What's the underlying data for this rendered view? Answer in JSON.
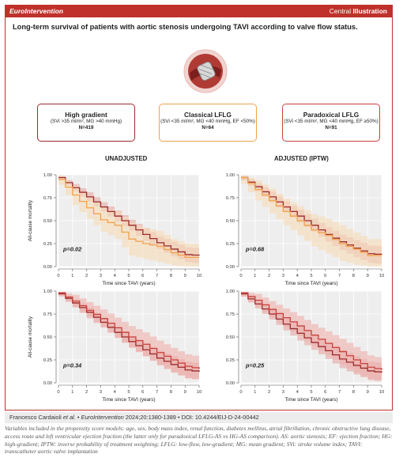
{
  "header": {
    "brand": "EuroIntervention",
    "illustration_prefix": "Central",
    "illustration_bold": "Illustration"
  },
  "headline": "Long-term survival of patients with aortic stenosis undergoing TAVI according to valve flow status.",
  "valve_icon": "tavi-valve-illustration",
  "colors": {
    "accent": "#c0312b",
    "high_gradient": "#9c2a2b",
    "classical": "#f2a24a",
    "paradoxical": "#c9413c",
    "ci_high": "#e6a9a5",
    "ci_classical": "#f7dcb8",
    "ci_paradoxical": "#efb0ab",
    "plot_bg": "#eeeeee",
    "reference_bg": "#ececec"
  },
  "groups": [
    {
      "name": "High gradient",
      "criteria": "(SVi >35 ml/m², MG >40 mmHg)",
      "n": "N=419"
    },
    {
      "name": "Classical LFLG",
      "criteria": "(SVi <35 ml/m², MG <40 mmHg, EF <50%)",
      "n": "N=64"
    },
    {
      "name": "Paradoxical LFLG",
      "criteria": "(SVi <35 ml/m², MG <40 mmHg, EF ≥50%)",
      "n": "N=91"
    }
  ],
  "column_titles": {
    "left": "UNADJUSTED",
    "right": "ADJUSTED (IPTW)"
  },
  "chart_data": [
    {
      "type": "line",
      "column": "UNADJUSTED",
      "comparison": "High gradient vs Classical LFLG",
      "ylabel": "All-cause mortality",
      "xlabel": "Time since TAVI (years)",
      "xlim": [
        0,
        10
      ],
      "ylim": [
        0,
        1
      ],
      "x_ticks": [
        "0",
        "1",
        "2",
        "3",
        "4",
        "5",
        "6",
        "7",
        "8",
        "9",
        "10"
      ],
      "y_ticks": [
        "0.00",
        "0.25",
        "0.50",
        "0.75",
        "1.00"
      ],
      "grid": true,
      "annotation": "p=0.02",
      "series": [
        {
          "group": "High gradient",
          "color": "#9c2a2b",
          "ci_color": "#e6a9a5",
          "x": [
            0,
            1,
            2,
            3,
            4,
            5,
            6,
            7,
            8,
            9,
            10
          ],
          "y": [
            0.97,
            0.86,
            0.76,
            0.65,
            0.55,
            0.45,
            0.35,
            0.26,
            0.19,
            0.13,
            0.12
          ],
          "lower": [
            0.95,
            0.82,
            0.71,
            0.6,
            0.49,
            0.39,
            0.28,
            0.19,
            0.11,
            0.05,
            0.03
          ],
          "upper": [
            0.99,
            0.9,
            0.81,
            0.7,
            0.61,
            0.51,
            0.42,
            0.33,
            0.27,
            0.21,
            0.2
          ]
        },
        {
          "group": "Classical LFLG",
          "color": "#f2a24a",
          "ci_color": "#f7dcb8",
          "x": [
            0,
            1,
            2,
            3,
            4,
            5,
            6,
            7,
            8,
            9,
            10
          ],
          "y": [
            0.95,
            0.78,
            0.64,
            0.51,
            0.45,
            0.3,
            0.25,
            0.22,
            0.15,
            0.1,
            0.1
          ],
          "lower": [
            0.89,
            0.67,
            0.52,
            0.38,
            0.3,
            0.12,
            0.08,
            0.05,
            0.01,
            0.0,
            0.0
          ],
          "upper": [
            0.99,
            0.88,
            0.76,
            0.64,
            0.6,
            0.48,
            0.42,
            0.39,
            0.3,
            0.25,
            0.25
          ]
        }
      ]
    },
    {
      "type": "line",
      "column": "ADJUSTED (IPTW)",
      "comparison": "High gradient vs Classical LFLG",
      "ylabel": "",
      "xlabel": "Time since TAVI (years)",
      "xlim": [
        0,
        10
      ],
      "ylim": [
        0,
        1
      ],
      "x_ticks": [
        "0",
        "1",
        "2",
        "3",
        "4",
        "5",
        "6",
        "7",
        "8",
        "9",
        "10"
      ],
      "y_ticks": [
        "0.00",
        "0.25",
        "0.50",
        "0.75",
        "1.00"
      ],
      "grid": true,
      "annotation": "p=0.68",
      "series": [
        {
          "group": "High gradient",
          "color": "#9c2a2b",
          "ci_color": "#e6a9a5",
          "x": [
            0,
            1,
            2,
            3,
            4,
            5,
            6,
            7,
            8,
            9,
            10
          ],
          "y": [
            0.97,
            0.87,
            0.76,
            0.65,
            0.55,
            0.45,
            0.35,
            0.27,
            0.2,
            0.14,
            0.13
          ],
          "lower": [
            0.94,
            0.82,
            0.7,
            0.59,
            0.48,
            0.38,
            0.27,
            0.18,
            0.1,
            0.04,
            0.02
          ],
          "upper": [
            0.99,
            0.91,
            0.82,
            0.71,
            0.62,
            0.52,
            0.43,
            0.35,
            0.29,
            0.23,
            0.22
          ]
        },
        {
          "group": "Classical LFLG",
          "color": "#f2a24a",
          "ci_color": "#f7dcb8",
          "x": [
            0,
            1,
            2,
            3,
            4,
            5,
            6,
            7,
            8,
            9,
            10
          ],
          "y": [
            0.97,
            0.84,
            0.72,
            0.6,
            0.5,
            0.4,
            0.34,
            0.25,
            0.19,
            0.12,
            0.12
          ],
          "lower": [
            0.9,
            0.72,
            0.58,
            0.45,
            0.34,
            0.22,
            0.14,
            0.06,
            0.02,
            0.0,
            0.0
          ],
          "upper": [
            0.99,
            0.94,
            0.85,
            0.74,
            0.66,
            0.57,
            0.52,
            0.45,
            0.37,
            0.3,
            0.3
          ]
        }
      ]
    },
    {
      "type": "line",
      "column": "UNADJUSTED",
      "comparison": "High gradient vs Paradoxical LFLG",
      "ylabel": "All-cause mortality",
      "xlabel": "Time since TAVI (years)",
      "xlim": [
        0,
        10
      ],
      "ylim": [
        0,
        1
      ],
      "x_ticks": [
        "0",
        "1",
        "2",
        "3",
        "4",
        "5",
        "6",
        "7",
        "8",
        "9",
        "10"
      ],
      "y_ticks": [
        "0.00",
        "0.25",
        "0.50",
        "0.75",
        "1.00"
      ],
      "grid": true,
      "annotation": "p=0.34",
      "series": [
        {
          "group": "High gradient",
          "color": "#9c2a2b",
          "ci_color": "#e6a9a5",
          "x": [
            0,
            1,
            2,
            3,
            4,
            5,
            6,
            7,
            8,
            9,
            10
          ],
          "y": [
            0.97,
            0.87,
            0.77,
            0.66,
            0.55,
            0.45,
            0.36,
            0.27,
            0.2,
            0.14,
            0.12
          ],
          "lower": [
            0.95,
            0.83,
            0.72,
            0.61,
            0.49,
            0.39,
            0.29,
            0.19,
            0.11,
            0.05,
            0.03
          ],
          "upper": [
            0.99,
            0.91,
            0.82,
            0.71,
            0.61,
            0.51,
            0.43,
            0.35,
            0.29,
            0.23,
            0.21
          ]
        },
        {
          "group": "Paradoxical LFLG",
          "color": "#c9413c",
          "ci_color": "#efb0ab",
          "x": [
            0,
            1,
            2,
            3,
            4,
            5,
            6,
            7,
            8,
            9,
            10
          ],
          "y": [
            0.98,
            0.89,
            0.79,
            0.7,
            0.6,
            0.5,
            0.42,
            0.33,
            0.25,
            0.18,
            0.15
          ],
          "lower": [
            0.94,
            0.82,
            0.7,
            0.6,
            0.49,
            0.38,
            0.29,
            0.2,
            0.12,
            0.05,
            0.03
          ],
          "upper": [
            0.99,
            0.96,
            0.88,
            0.8,
            0.71,
            0.62,
            0.55,
            0.46,
            0.38,
            0.31,
            0.28
          ]
        }
      ]
    },
    {
      "type": "line",
      "column": "ADJUSTED (IPTW)",
      "comparison": "High gradient vs Paradoxical LFLG",
      "ylabel": "",
      "xlabel": "Time since TAVI (years)",
      "xlim": [
        0,
        10
      ],
      "ylim": [
        0,
        1
      ],
      "x_ticks": [
        "0",
        "1",
        "2",
        "3",
        "4",
        "5",
        "6",
        "7",
        "8",
        "9",
        "10"
      ],
      "y_ticks": [
        "0.00",
        "0.25",
        "0.50",
        "0.75",
        "1.00"
      ],
      "grid": true,
      "annotation": "p=0.25",
      "series": [
        {
          "group": "High gradient",
          "color": "#9c2a2b",
          "ci_color": "#e6a9a5",
          "x": [
            0,
            1,
            2,
            3,
            4,
            5,
            6,
            7,
            8,
            9,
            10
          ],
          "y": [
            0.97,
            0.86,
            0.75,
            0.64,
            0.54,
            0.44,
            0.35,
            0.26,
            0.19,
            0.13,
            0.11
          ],
          "lower": [
            0.94,
            0.81,
            0.69,
            0.57,
            0.46,
            0.36,
            0.26,
            0.16,
            0.09,
            0.03,
            0.01
          ],
          "upper": [
            0.99,
            0.91,
            0.81,
            0.71,
            0.62,
            0.52,
            0.44,
            0.36,
            0.29,
            0.23,
            0.21
          ]
        },
        {
          "group": "Paradoxical LFLG",
          "color": "#c9413c",
          "ci_color": "#efb0ab",
          "x": [
            0,
            1,
            2,
            3,
            4,
            5,
            6,
            7,
            8,
            9,
            10
          ],
          "y": [
            0.98,
            0.9,
            0.8,
            0.71,
            0.62,
            0.52,
            0.43,
            0.34,
            0.25,
            0.17,
            0.14
          ],
          "lower": [
            0.94,
            0.83,
            0.71,
            0.61,
            0.51,
            0.4,
            0.3,
            0.2,
            0.11,
            0.04,
            0.02
          ],
          "upper": [
            0.99,
            0.97,
            0.89,
            0.81,
            0.73,
            0.64,
            0.56,
            0.48,
            0.39,
            0.3,
            0.26
          ]
        }
      ]
    }
  ],
  "reference": {
    "authors": "Francesco Cardaioli ",
    "etal": "et al.",
    "sep1": " • ",
    "journal": "EuroIntervention",
    "details": " 2024;20:1380-1389 • DOI: 10.4244/EIJ-D-24-00442"
  },
  "notes": "Variables included in the propensity score models: age, sex, body mass index, renal function, diabetes mellitus, atrial fibrillation, chronic obstructive lung disease, access route and left ventricular ejection fraction (the latter only for paradoxical LFLG-AS vs HG-AS comparison). AS: aortic stenosis; EF: ejection fraction; HG: high-gradient; IPTW: inverse probability of treatment weighting; LFLG: low-flow, low-gradient; MG: mean gradient; SVi: stroke volume index; TAVI: transcatheter aortic valve implantation"
}
